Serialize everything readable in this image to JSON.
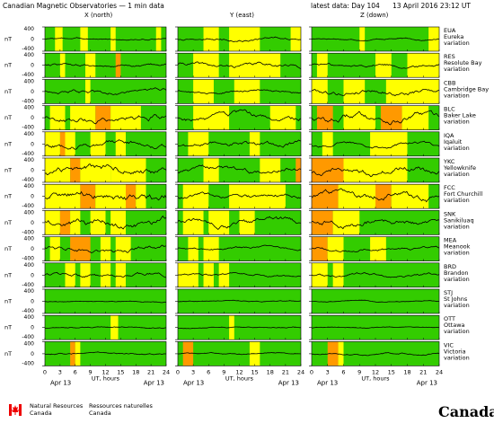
{
  "header": {
    "title": "Canadian Magnetic Observatories — 1 min data",
    "latest": "latest data: Day 104",
    "date": "13 April 2016 23:12 UT"
  },
  "columns": [
    "X (north)",
    "Y (east)",
    "Z (down)"
  ],
  "axis": {
    "unit": "nT",
    "ticks": [
      "0",
      "3",
      "6",
      "9",
      "12",
      "15",
      "18",
      "21",
      "24"
    ],
    "xlabel": "UT, hours",
    "date_label": "Apr 13",
    "ylabels": [
      "400",
      "0",
      "-400"
    ]
  },
  "colors": {
    "quiet": "#33cc00",
    "active": "#ffff00",
    "disturbed": "#ff9900",
    "storm": "#ff6600",
    "trace": "#000000"
  },
  "chart_data": {
    "type": "line",
    "x_range": [
      0,
      24
    ],
    "y_range": [
      -400,
      400
    ],
    "stations": [
      {
        "code": "EUA",
        "name": "Eureka",
        "suffix": "variation",
        "amp": [
          60,
          90,
          60
        ],
        "activity": [
          [
            "y",
            2,
            3.5
          ],
          [
            "y",
            7,
            8.5
          ],
          [
            "y",
            13,
            14
          ],
          [
            "y",
            22,
            23
          ],
          [
            "y",
            29,
            32
          ],
          [
            "y",
            34,
            40
          ],
          [
            "y",
            46,
            48
          ],
          [
            "y",
            57,
            58
          ],
          [
            "y",
            70,
            72
          ]
        ]
      },
      {
        "code": "RES",
        "name": "Resolute Bay",
        "suffix": "variation",
        "amp": [
          110,
          140,
          120
        ],
        "activity": [
          [
            "y",
            3,
            4
          ],
          [
            "y",
            8,
            10
          ],
          [
            "o",
            14,
            15
          ],
          [
            "y",
            27,
            32
          ],
          [
            "y",
            34,
            44
          ],
          [
            "y",
            49,
            51
          ],
          [
            "y",
            60,
            63
          ],
          [
            "y",
            66,
            72
          ]
        ]
      },
      {
        "code": "CBB",
        "name": "Cambridge Bay",
        "suffix": "variation",
        "amp": [
          140,
          100,
          180
        ],
        "activity": [
          [
            "y",
            8,
            9
          ],
          [
            "y",
            27,
            31
          ],
          [
            "y",
            35,
            40
          ],
          [
            "y",
            48,
            51
          ],
          [
            "y",
            54,
            58
          ],
          [
            "y",
            62,
            72
          ]
        ]
      },
      {
        "code": "BLC",
        "name": "Baker Lake",
        "suffix": "variation",
        "amp": [
          230,
          200,
          250
        ],
        "activity": [
          [
            "y",
            1,
            4
          ],
          [
            "y",
            5,
            10
          ],
          [
            "o",
            10,
            13
          ],
          [
            "y",
            13,
            19
          ],
          [
            "y",
            27,
            34
          ],
          [
            "y",
            42,
            47
          ],
          [
            "o",
            49,
            52
          ],
          [
            "y",
            54,
            60
          ],
          [
            "o",
            61,
            65
          ],
          [
            "y",
            65,
            70
          ]
        ]
      },
      {
        "code": "IQA",
        "name": "Iqaluit",
        "suffix": "variation",
        "amp": [
          200,
          170,
          130
        ],
        "activity": [
          [
            "y",
            0,
            3
          ],
          [
            "o",
            3,
            4
          ],
          [
            "y",
            4,
            6
          ],
          [
            "y",
            9,
            12
          ],
          [
            "y",
            14,
            16
          ],
          [
            "y",
            26,
            30
          ],
          [
            "y",
            38,
            40
          ],
          [
            "y",
            50,
            52
          ],
          [
            "y",
            59,
            66
          ]
        ]
      },
      {
        "code": "YKC",
        "name": "Yellowknife",
        "suffix": "variation",
        "amp": [
          260,
          170,
          240
        ],
        "activity": [
          [
            "y",
            0,
            5
          ],
          [
            "o",
            5,
            7
          ],
          [
            "y",
            7,
            13
          ],
          [
            "y",
            13,
            20
          ],
          [
            "y",
            29,
            32
          ],
          [
            "y",
            40,
            44
          ],
          [
            "o",
            47,
            54
          ],
          [
            "y",
            54,
            66
          ]
        ]
      },
      {
        "code": "FCC",
        "name": "Fort Churchill",
        "suffix": "variation",
        "amp": [
          300,
          150,
          260
        ],
        "activity": [
          [
            "y",
            0,
            7
          ],
          [
            "o",
            7,
            10
          ],
          [
            "y",
            10,
            16
          ],
          [
            "o",
            16,
            18
          ],
          [
            "y",
            18,
            20
          ],
          [
            "y",
            25,
            30
          ],
          [
            "y",
            34,
            45
          ],
          [
            "o",
            48,
            53
          ],
          [
            "y",
            53,
            60
          ],
          [
            "o",
            60,
            63
          ],
          [
            "y",
            63,
            70
          ]
        ]
      },
      {
        "code": "SNK",
        "name": "Sanikiluaq",
        "suffix": "variation",
        "amp": [
          280,
          210,
          230
        ],
        "activity": [
          [
            "y",
            0,
            3
          ],
          [
            "o",
            3,
            5
          ],
          [
            "y",
            5,
            7
          ],
          [
            "y",
            9,
            12
          ],
          [
            "y",
            13,
            16
          ],
          [
            "y",
            25,
            29
          ],
          [
            "y",
            30,
            34
          ],
          [
            "y",
            36,
            39
          ],
          [
            "o",
            48,
            52
          ],
          [
            "y",
            52,
            57
          ]
        ]
      },
      {
        "code": "MEA",
        "name": "Meanook",
        "suffix": "variation",
        "amp": [
          170,
          90,
          110
        ],
        "activity": [
          [
            "y",
            1,
            3
          ],
          [
            "o",
            5,
            9
          ],
          [
            "y",
            11,
            13
          ],
          [
            "y",
            14,
            17
          ],
          [
            "y",
            26,
            28
          ],
          [
            "y",
            29,
            32
          ],
          [
            "o",
            48,
            51
          ],
          [
            "y",
            51,
            54
          ],
          [
            "y",
            59,
            62
          ]
        ]
      },
      {
        "code": "BRD",
        "name": "Brandon",
        "suffix": "variation",
        "amp": [
          130,
          90,
          110
        ],
        "activity": [
          [
            "y",
            4,
            6
          ],
          [
            "y",
            7,
            9
          ],
          [
            "y",
            11,
            13
          ],
          [
            "y",
            14,
            16
          ],
          [
            "y",
            24,
            28
          ],
          [
            "y",
            29,
            31
          ],
          [
            "y",
            32,
            34
          ],
          [
            "y",
            48,
            51
          ],
          [
            "y",
            52,
            54
          ]
        ]
      },
      {
        "code": "STJ",
        "name": "St Johns",
        "suffix": "variation",
        "amp": [
          40,
          40,
          35
        ],
        "activity": []
      },
      {
        "code": "OTT",
        "name": "Ottawa",
        "suffix": "variation",
        "amp": [
          50,
          40,
          40
        ],
        "activity": [
          [
            "y",
            13,
            14.5
          ],
          [
            "y",
            34,
            35
          ]
        ]
      },
      {
        "code": "VIC",
        "name": "Victoria",
        "suffix": "variation",
        "amp": [
          60,
          50,
          60
        ],
        "activity": [
          [
            "o",
            5,
            6
          ],
          [
            "y",
            6,
            7
          ],
          [
            "o",
            25,
            27
          ],
          [
            "y",
            38,
            40
          ],
          [
            "o",
            51,
            53
          ],
          [
            "y",
            53,
            54
          ]
        ]
      }
    ]
  },
  "footer": {
    "nr_en": "Natural Resources",
    "ca_en": "Canada",
    "nr_fr": "Ressources naturelles",
    "ca_fr": "Canada",
    "wordmark": "Canada"
  }
}
